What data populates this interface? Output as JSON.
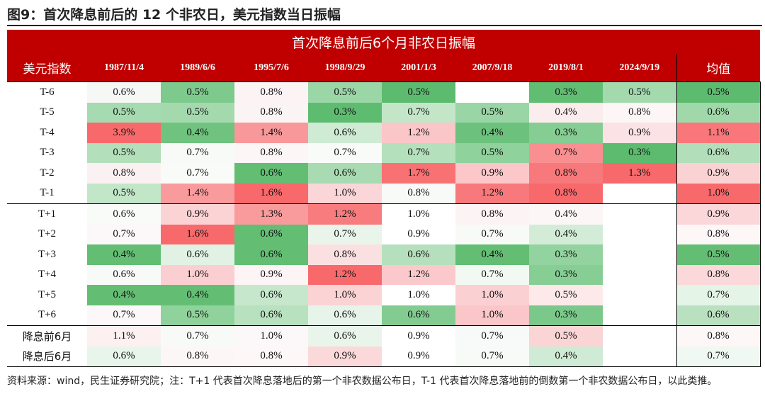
{
  "title": "图9：首次降息前后的 12 个非农日，美元指数当日振幅",
  "table": {
    "main_header": "首次降息前后6个月非农日振幅",
    "row_header_label": "美元指数",
    "columns": [
      "1987/11/4",
      "1989/6/6",
      "1995/7/6",
      "1998/9/29",
      "2001/1/3",
      "2007/9/18",
      "2019/8/1",
      "2024/9/19",
      "均值"
    ],
    "rows": [
      {
        "label": "T-6",
        "values": [
          "0.6%",
          "0.5%",
          "0.8%",
          "0.5%",
          "0.5%",
          "",
          "0.3%",
          "0.5%",
          "0.5%"
        ],
        "colors": [
          "#f6f8f6",
          "#7dca8c",
          "#fbf3f4",
          "#9bd6a6",
          "#5cbb6e",
          "#ffffff",
          "#61bd72",
          "#a3d9ad",
          "#5cbb6e"
        ]
      },
      {
        "label": "T-5",
        "values": [
          "0.5%",
          "0.5%",
          "0.8%",
          "0.3%",
          "0.7%",
          "0.5%",
          "0.4%",
          "0.8%",
          "0.6%"
        ],
        "colors": [
          "#a6dab0",
          "#a4d9ae",
          "#fbf4f5",
          "#5ebc70",
          "#c3e6c9",
          "#9ad5a5",
          "#fbeced",
          "#fdf6f7",
          "#a0d8aa"
        ]
      },
      {
        "label": "T-4",
        "values": [
          "3.9%",
          "0.4%",
          "1.4%",
          "0.6%",
          "1.2%",
          "0.4%",
          "0.3%",
          "0.9%",
          "1.1%"
        ],
        "colors": [
          "#f8696b",
          "#6fc37f",
          "#f9989a",
          "#cfebd4",
          "#fbc6c8",
          "#6cc27d",
          "#86cd94",
          "#fbe2e4",
          "#f9777a"
        ]
      },
      {
        "label": "T-3",
        "values": [
          "0.5%",
          "0.7%",
          "0.8%",
          "0.7%",
          "0.7%",
          "0.5%",
          "0.7%",
          "0.3%",
          "0.6%"
        ],
        "colors": [
          "#b3dfba",
          "#f8faf8",
          "#fcf6f7",
          "#f9fbf9",
          "#b5e0bc",
          "#8fd29c",
          "#f98f91",
          "#5cbb6e",
          "#b2deb9"
        ]
      },
      {
        "label": "T-2",
        "values": [
          "0.8%",
          "0.7%",
          "0.6%",
          "0.6%",
          "1.7%",
          "0.9%",
          "0.8%",
          "1.3%",
          "0.9%"
        ],
        "colors": [
          "#fcf1f2",
          "#f9fbf9",
          "#63be74",
          "#a8dbb1",
          "#f87274",
          "#fbc7c9",
          "#f8797b",
          "#f8696b",
          "#fbd2d4"
        ]
      },
      {
        "label": "T-1",
        "values": [
          "0.5%",
          "1.4%",
          "1.6%",
          "1.0%",
          "0.8%",
          "1.2%",
          "0.8%",
          "",
          "1.0%"
        ],
        "colors": [
          "#c2e6c8",
          "#f99b9d",
          "#f8696b",
          "#fbd6d8",
          "#f7faf7",
          "#f8797b",
          "#f8696b",
          "#ffffff",
          "#f8696b"
        ]
      },
      {
        "label": "T+1",
        "values": [
          "0.6%",
          "0.9%",
          "1.3%",
          "1.2%",
          "1.0%",
          "0.8%",
          "0.4%",
          "",
          "0.9%"
        ],
        "colors": [
          "#f9fbf9",
          "#fbd3d5",
          "#f99a9c",
          "#f87b7d",
          "#ffffff",
          "#fcf3f4",
          "#fcf6f7",
          "#ffffff",
          "#fbd7d9"
        ]
      },
      {
        "label": "T+2",
        "values": [
          "0.7%",
          "1.6%",
          "0.6%",
          "0.7%",
          "0.9%",
          "0.7%",
          "0.4%",
          "",
          "0.8%"
        ],
        "colors": [
          "#fcf8f9",
          "#f8696b",
          "#63be74",
          "#e9f5eb",
          "#ffffff",
          "#f8faf8",
          "#d3ecd8",
          "#ffffff",
          "#fdf7f8"
        ]
      },
      {
        "label": "T+3",
        "values": [
          "0.4%",
          "0.6%",
          "0.6%",
          "0.8%",
          "0.6%",
          "0.4%",
          "0.3%",
          "",
          "0.5%"
        ],
        "colors": [
          "#63be74",
          "#e1f2e4",
          "#63be74",
          "#fbe0e2",
          "#b6e0bd",
          "#63be74",
          "#93d39f",
          "#ffffff",
          "#63be74"
        ]
      },
      {
        "label": "T+4",
        "values": [
          "0.6%",
          "1.0%",
          "0.9%",
          "1.2%",
          "1.2%",
          "0.7%",
          "0.3%",
          "",
          "0.8%"
        ],
        "colors": [
          "#f8faf8",
          "#fbcfd1",
          "#fdf4f5",
          "#f8696b",
          "#fbc9cb",
          "#f2f9f3",
          "#87ce95",
          "#ffffff",
          "#fbd8da"
        ]
      },
      {
        "label": "T+5",
        "values": [
          "0.4%",
          "0.4%",
          "0.6%",
          "1.0%",
          "1.0%",
          "1.0%",
          "0.5%",
          "",
          "0.7%"
        ],
        "colors": [
          "#63be74",
          "#63be74",
          "#c6e7cc",
          "#fbd3d5",
          "#ffffff",
          "#fbd0d2",
          "#fde9ea",
          "#ffffff",
          "#e4f4e7"
        ]
      },
      {
        "label": "T+6",
        "values": [
          "0.7%",
          "0.5%",
          "0.6%",
          "0.6%",
          "0.6%",
          "1.0%",
          "0.3%",
          "",
          "0.6%"
        ],
        "colors": [
          "#fcf8f9",
          "#90d29c",
          "#b8e1bf",
          "#e6f4e9",
          "#83cc91",
          "#fbc6c8",
          "#7bc98a",
          "#ffffff",
          "#b9e1c0"
        ]
      },
      {
        "label": "降息前6月",
        "values": [
          "1.1%",
          "0.7%",
          "1.0%",
          "0.6%",
          "0.9%",
          "0.7%",
          "0.5%",
          "",
          "0.8%"
        ],
        "colors": [
          "#fcf0f1",
          "#f8faf8",
          "#fcf8f9",
          "#e9f5eb",
          "#ffffff",
          "#f7faf8",
          "#fbd4d6",
          "#ffffff",
          "#fdf7f8"
        ]
      },
      {
        "label": "降息后6月",
        "values": [
          "0.6%",
          "0.8%",
          "0.8%",
          "0.9%",
          "0.9%",
          "0.7%",
          "0.4%",
          "",
          "0.7%"
        ],
        "colors": [
          "#e8f5ea",
          "#fdf6f7",
          "#fdf7f8",
          "#fbd9db",
          "#ffffff",
          "#f8faf8",
          "#d0ebd5",
          "#ffffff",
          "#eff8f1"
        ]
      }
    ]
  },
  "note": "资料来源：wind，民生证券研究院；注：T+1 代表首次降息落地后的第一个非农数据公布日，T-1 代表首次降息落地前的倒数第一个非农数据公布日，以此类推。"
}
